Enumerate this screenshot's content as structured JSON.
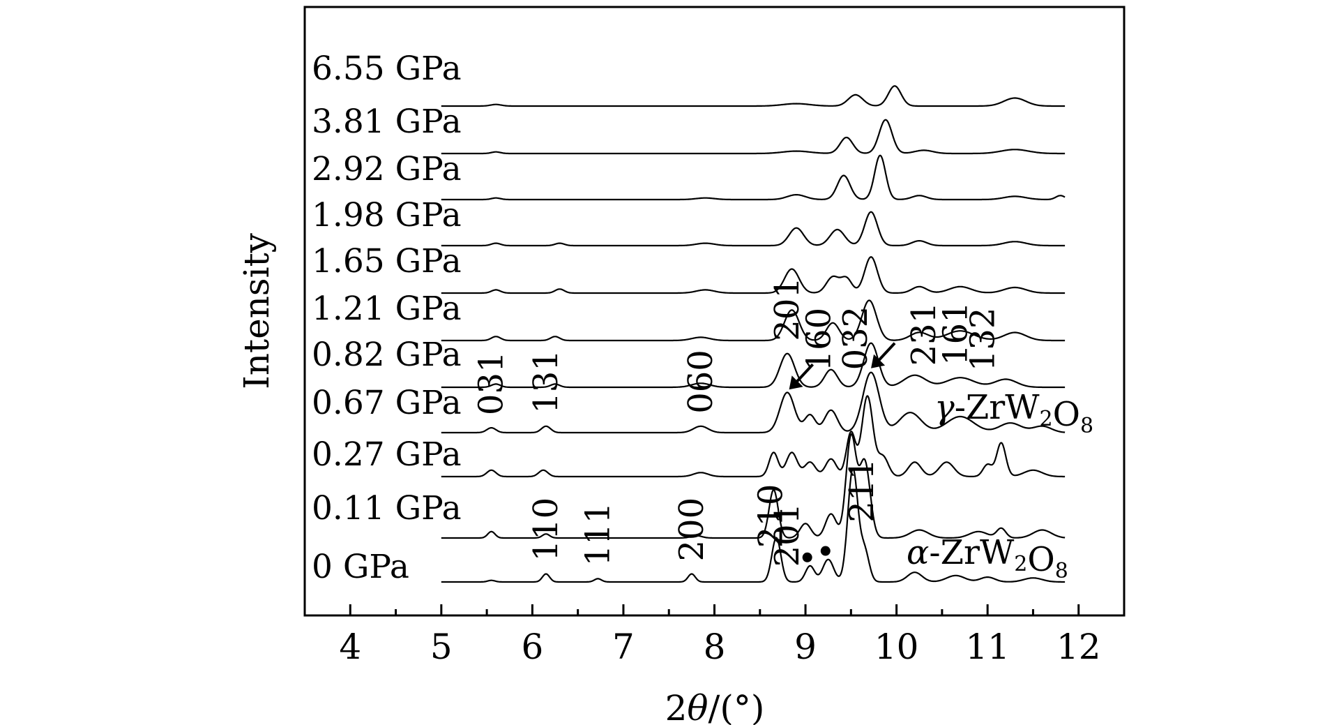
{
  "chart_data": {
    "type": "line",
    "xlabel": "2θ/(°)",
    "ylabel": "Intensity",
    "xlim": [
      3.5,
      12.5
    ],
    "xticks": [
      "4",
      "5",
      "6",
      "7",
      "8",
      "9",
      "10",
      "11",
      "12"
    ],
    "x_range": [
      5.0,
      11.85
    ],
    "grid": false,
    "phase_labels": [
      {
        "name": "γ-ZrW2O8",
        "text": "γ-ZrW₂O₈"
      },
      {
        "name": "α-ZrW2O8",
        "text": "α-ZrW₂O₈"
      }
    ],
    "series": [
      {
        "name": "0 GPa",
        "peaks": [
          [
            5.55,
            2,
            0.04
          ],
          [
            6.15,
            10,
            0.04
          ],
          [
            6.72,
            4,
            0.04
          ],
          [
            7.75,
            10,
            0.04
          ],
          [
            8.68,
            55,
            0.05
          ],
          [
            9.05,
            20,
            0.05
          ],
          [
            9.25,
            28,
            0.06
          ],
          [
            9.52,
            140,
            0.055
          ],
          [
            9.65,
            38,
            0.05
          ],
          [
            10.2,
            12,
            0.08
          ],
          [
            10.65,
            8,
            0.1
          ],
          [
            11.0,
            6,
            0.08
          ],
          [
            11.5,
            5,
            0.1
          ]
        ]
      },
      {
        "name": "0.11 GPa",
        "peaks": [
          [
            5.55,
            8,
            0.04
          ],
          [
            6.15,
            5,
            0.04
          ],
          [
            7.8,
            3,
            0.06
          ],
          [
            8.65,
            60,
            0.05
          ],
          [
            9.0,
            18,
            0.06
          ],
          [
            9.28,
            30,
            0.06
          ],
          [
            9.5,
            125,
            0.055
          ],
          [
            9.65,
            95,
            0.06
          ],
          [
            10.25,
            10,
            0.1
          ],
          [
            10.9,
            8,
            0.1
          ],
          [
            11.15,
            12,
            0.05
          ],
          [
            11.6,
            10,
            0.1
          ]
        ]
      },
      {
        "name": "0.27 GPa",
        "peaks": [
          [
            5.55,
            8,
            0.05
          ],
          [
            6.12,
            8,
            0.05
          ],
          [
            7.85,
            5,
            0.08
          ],
          [
            8.65,
            30,
            0.05
          ],
          [
            8.85,
            30,
            0.06
          ],
          [
            9.05,
            18,
            0.06
          ],
          [
            9.28,
            22,
            0.06
          ],
          [
            9.5,
            55,
            0.05
          ],
          [
            9.68,
            100,
            0.06
          ],
          [
            9.85,
            25,
            0.06
          ],
          [
            10.2,
            18,
            0.07
          ],
          [
            10.55,
            18,
            0.08
          ],
          [
            11.0,
            15,
            0.05
          ],
          [
            11.15,
            42,
            0.05
          ],
          [
            11.5,
            8,
            0.1
          ]
        ]
      },
      {
        "name": "0.67 GPa",
        "peaks": [
          [
            5.55,
            6,
            0.05
          ],
          [
            6.15,
            8,
            0.05
          ],
          [
            7.85,
            8,
            0.08
          ],
          [
            8.8,
            50,
            0.08
          ],
          [
            9.05,
            22,
            0.06
          ],
          [
            9.28,
            28,
            0.07
          ],
          [
            9.72,
            75,
            0.09
          ],
          [
            10.15,
            25,
            0.12
          ],
          [
            10.7,
            20,
            0.15
          ],
          [
            11.25,
            12,
            0.12
          ],
          [
            11.6,
            8,
            0.1
          ]
        ]
      },
      {
        "name": "0.82 GPa",
        "peaks": [
          [
            5.6,
            4,
            0.05
          ],
          [
            6.25,
            4,
            0.05
          ],
          [
            7.85,
            5,
            0.1
          ],
          [
            8.8,
            42,
            0.08
          ],
          [
            9.28,
            22,
            0.07
          ],
          [
            9.72,
            55,
            0.08
          ],
          [
            10.2,
            15,
            0.12
          ],
          [
            10.7,
            12,
            0.15
          ],
          [
            11.2,
            10,
            0.12
          ]
        ]
      },
      {
        "name": "1.21 GPa",
        "peaks": [
          [
            5.6,
            5,
            0.05
          ],
          [
            6.25,
            5,
            0.05
          ],
          [
            7.85,
            4,
            0.1
          ],
          [
            8.85,
            38,
            0.08
          ],
          [
            9.3,
            22,
            0.07
          ],
          [
            9.7,
            50,
            0.08
          ],
          [
            10.25,
            10,
            0.1
          ],
          [
            10.7,
            12,
            0.15
          ],
          [
            11.3,
            10,
            0.12
          ]
        ]
      },
      {
        "name": "1.65 GPa",
        "peaks": [
          [
            5.6,
            4,
            0.05
          ],
          [
            6.3,
            5,
            0.05
          ],
          [
            7.9,
            4,
            0.1
          ],
          [
            8.85,
            30,
            0.08
          ],
          [
            9.3,
            20,
            0.07
          ],
          [
            9.45,
            18,
            0.06
          ],
          [
            9.72,
            45,
            0.07
          ],
          [
            10.25,
            8,
            0.08
          ],
          [
            10.7,
            8,
            0.12
          ],
          [
            11.3,
            7,
            0.12
          ]
        ]
      },
      {
        "name": "1.98 GPa",
        "peaks": [
          [
            5.6,
            3,
            0.05
          ],
          [
            6.3,
            3,
            0.05
          ],
          [
            7.9,
            3,
            0.1
          ],
          [
            8.9,
            22,
            0.08
          ],
          [
            9.35,
            20,
            0.08
          ],
          [
            9.72,
            42,
            0.07
          ],
          [
            10.25,
            6,
            0.08
          ],
          [
            11.3,
            5,
            0.12
          ]
        ]
      },
      {
        "name": "2.92 GPa",
        "peaks": [
          [
            5.6,
            2,
            0.05
          ],
          [
            7.9,
            2,
            0.1
          ],
          [
            8.9,
            6,
            0.1
          ],
          [
            9.42,
            30,
            0.07
          ],
          [
            9.82,
            55,
            0.06
          ],
          [
            10.25,
            5,
            0.08
          ],
          [
            11.3,
            4,
            0.12
          ],
          [
            11.8,
            5,
            0.05
          ]
        ]
      },
      {
        "name": "3.81 GPa",
        "peaks": [
          [
            5.6,
            2,
            0.05
          ],
          [
            8.9,
            3,
            0.15
          ],
          [
            9.45,
            20,
            0.07
          ],
          [
            9.88,
            42,
            0.07
          ],
          [
            10.3,
            4,
            0.1
          ],
          [
            11.3,
            5,
            0.15
          ]
        ]
      },
      {
        "name": "6.55 GPa",
        "peaks": [
          [
            5.6,
            2,
            0.06
          ],
          [
            8.9,
            3,
            0.15
          ],
          [
            9.55,
            14,
            0.08
          ],
          [
            9.98,
            25,
            0.07
          ],
          [
            11.3,
            10,
            0.12
          ]
        ]
      }
    ],
    "peak_labels": [
      {
        "text": "110",
        "x": 6.15,
        "series": "0 GPa"
      },
      {
        "text": "111",
        "x": 6.72,
        "series": "0 GPa"
      },
      {
        "text": "200",
        "x": 7.75,
        "series": "0 GPa"
      },
      {
        "text": "210",
        "x": 8.62,
        "series": "0 GPa"
      },
      {
        "text": "201",
        "x": 8.8,
        "series": "0 GPa"
      },
      {
        "text": "211",
        "x": 9.62,
        "series": "0 GPa"
      },
      {
        "text": "031",
        "x": 5.55,
        "series": "0.67 GPa"
      },
      {
        "text": "131",
        "x": 6.15,
        "series": "0.67 GPa"
      },
      {
        "text": "060",
        "x": 7.85,
        "series": "0.67 GPa"
      },
      {
        "text": "201",
        "x": 8.8,
        "series": "0.82 GPa"
      },
      {
        "text": "160",
        "x": 9.15,
        "series": "0.82 GPa"
      },
      {
        "text": "032",
        "x": 9.55,
        "series": "0.82 GPa"
      },
      {
        "text": "231",
        "x": 10.3,
        "series": "0.82 GPa"
      },
      {
        "text": "161",
        "x": 10.65,
        "series": "0.82 GPa"
      },
      {
        "text": "132",
        "x": 10.95,
        "series": "0.82 GPa"
      }
    ],
    "markers": [
      {
        "symbol": "dot",
        "x": 9.02,
        "series": "0 GPa"
      },
      {
        "symbol": "dot",
        "x": 9.22,
        "series": "0 GPa"
      }
    ],
    "arrows": [
      {
        "x": 8.82,
        "series": "0.67 GPa"
      },
      {
        "x": 9.72,
        "series": "0.67 GPa"
      }
    ]
  }
}
